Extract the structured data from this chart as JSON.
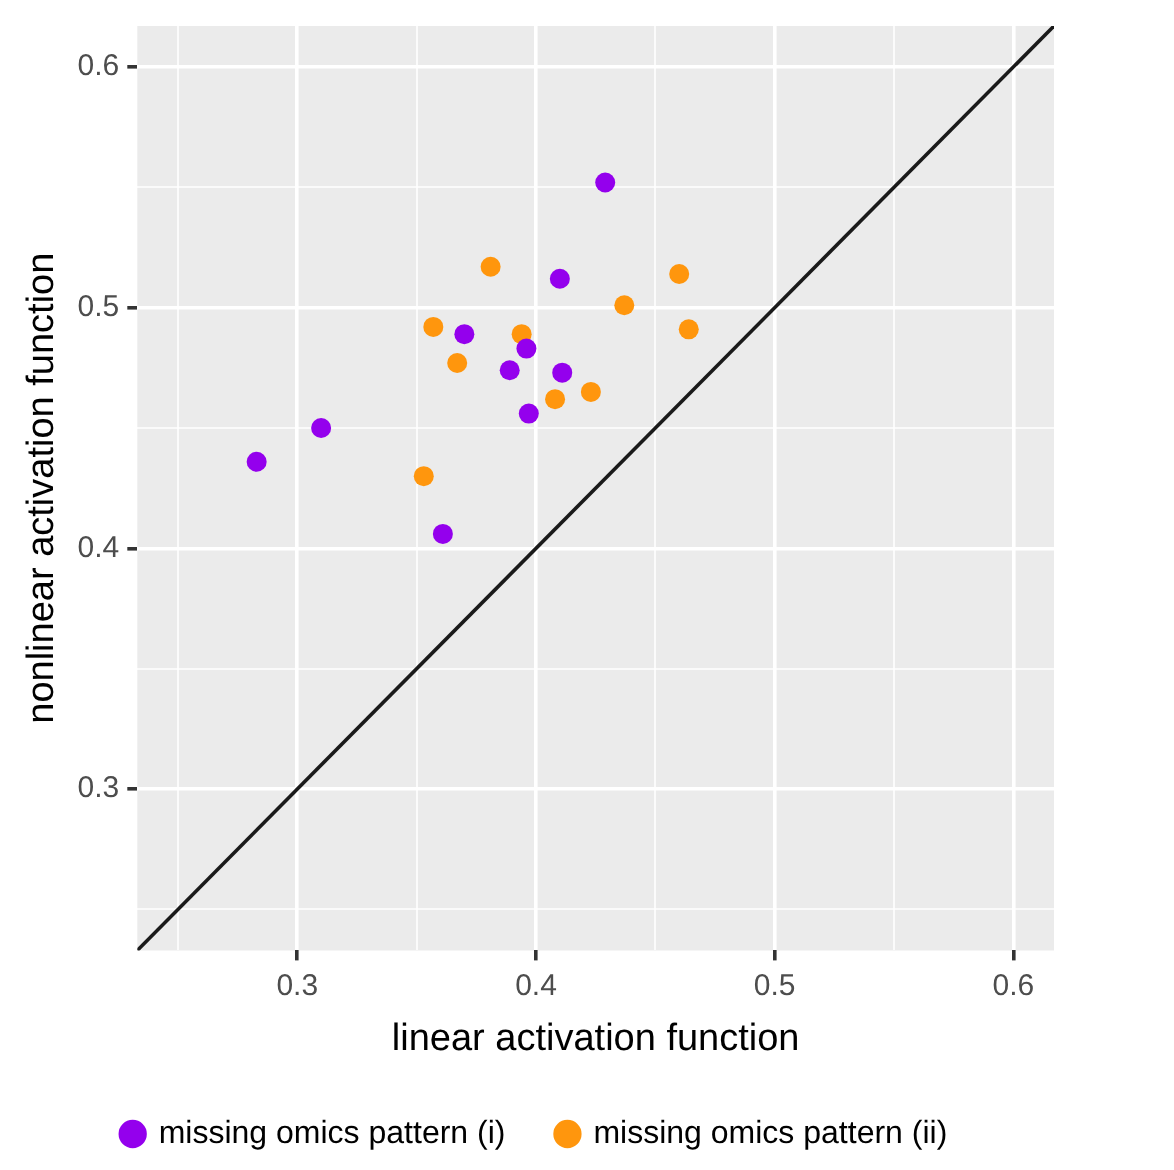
{
  "chart_data": {
    "type": "scatter",
    "xlabel": "linear activation function",
    "ylabel": "nonlinear activation function",
    "xlim": [
      0.233,
      0.617
    ],
    "ylim": [
      0.233,
      0.617
    ],
    "xticks": [
      {
        "value": 0.25,
        "label": null
      },
      0.3,
      {
        "value": 0.35,
        "label": null
      },
      0.4,
      {
        "value": 0.45,
        "label": null
      },
      0.5,
      {
        "value": 0.55,
        "label": null
      },
      0.6
    ],
    "yticks": [
      {
        "value": 0.25,
        "label": null
      },
      0.3,
      {
        "value": 0.35,
        "label": null
      },
      0.4,
      {
        "value": 0.45,
        "label": null
      },
      0.5,
      {
        "value": 0.55,
        "label": null
      },
      0.6
    ],
    "grid": true,
    "legend": "bottom",
    "marker": "circle",
    "series": [
      {
        "name": "missing omics pattern (i)",
        "color": "#9400ed",
        "x": [
          0.429,
          0.41,
          0.37,
          0.396,
          0.389,
          0.411,
          0.397,
          0.31,
          0.283,
          0.361
        ],
        "values": [
          0.552,
          0.512,
          0.489,
          0.483,
          0.474,
          0.473,
          0.456,
          0.45,
          0.436,
          0.406
        ]
      },
      {
        "name": "missing omics pattern (ii)",
        "color": "#ff960d",
        "x": [
          0.381,
          0.46,
          0.437,
          0.357,
          0.394,
          0.464,
          0.367,
          0.408,
          0.423,
          0.353
        ],
        "values": [
          0.517,
          0.514,
          0.501,
          0.492,
          0.489,
          0.491,
          0.477,
          0.462,
          0.465,
          0.43
        ]
      },
      {
        "type": "line",
        "color": "#1a1a1a",
        "x": [
          0.233,
          0.617
        ],
        "values": [
          0.233,
          0.617
        ],
        "marker": "none",
        "line_style": "solid"
      }
    ]
  }
}
